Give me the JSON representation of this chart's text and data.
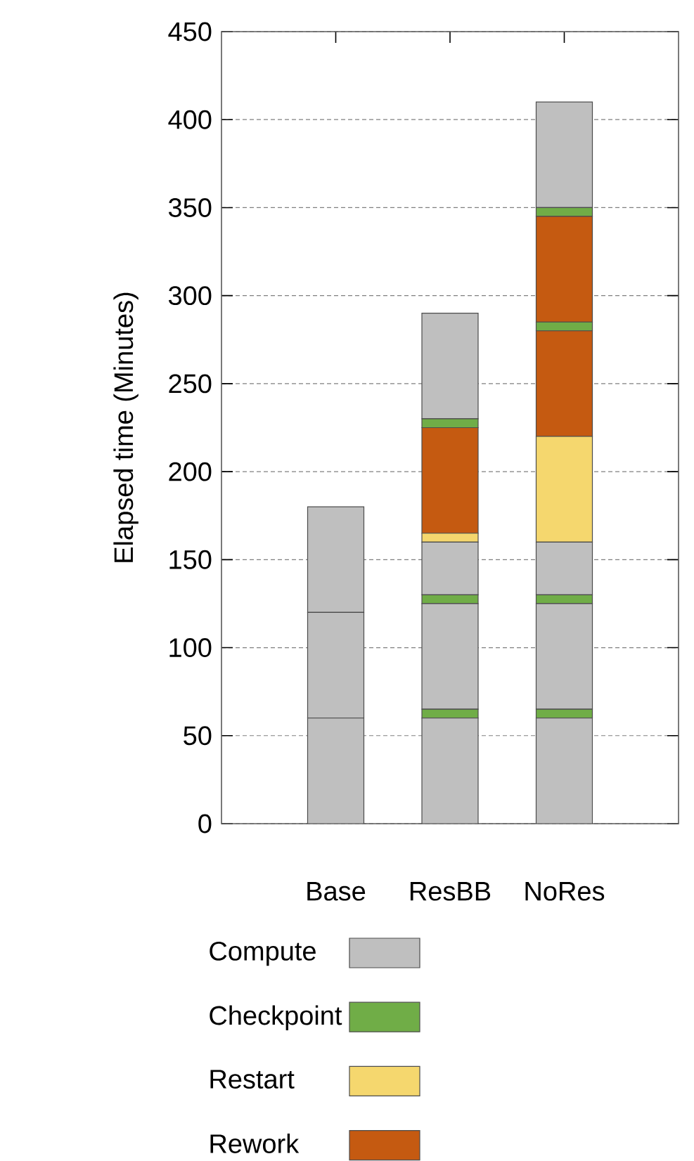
{
  "chart_data": {
    "type": "bar",
    "stacked": true,
    "ylabel": "Elapsed time (Minutes)",
    "categories": [
      "Base",
      "ResBB",
      "NoRes"
    ],
    "series": [
      {
        "name": "Compute",
        "color": "#bfbfbf",
        "values": [
          60,
          60,
          60
        ]
      },
      {
        "name": "Checkpoint",
        "color": "#70ad47",
        "values": [
          0,
          5,
          5
        ]
      },
      {
        "color": "#bfbfbf",
        "values": [
          60,
          60,
          60
        ]
      },
      {
        "color": "#70ad47",
        "values": [
          0,
          5,
          5
        ]
      },
      {
        "color": "#bfbfbf",
        "values": [
          60,
          30,
          30
        ]
      },
      {
        "name": "Restart",
        "color": "#f5d76e",
        "values": [
          0,
          5,
          60
        ]
      },
      {
        "name": "Rework",
        "color": "#c55a11",
        "values": [
          0,
          60,
          60
        ]
      },
      {
        "color": "#70ad47",
        "values": [
          0,
          5,
          5
        ]
      },
      {
        "color": "#c55a11",
        "values": [
          0,
          0,
          60
        ]
      },
      {
        "color": "#70ad47",
        "values": [
          0,
          0,
          5
        ]
      },
      {
        "color": "#bfbfbf",
        "values": [
          0,
          60,
          60
        ]
      }
    ],
    "ylim": [
      0,
      450
    ],
    "yticks": [
      0,
      50,
      100,
      150,
      200,
      250,
      300,
      350,
      400,
      450
    ],
    "grid": "y",
    "legend": "bottom"
  }
}
